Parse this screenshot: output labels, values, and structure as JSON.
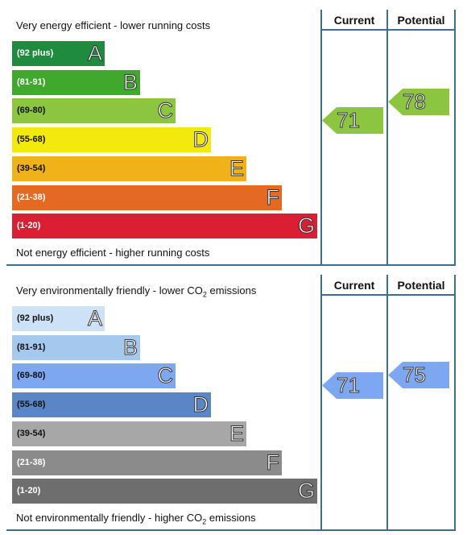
{
  "chart_data": [
    {
      "type": "bar",
      "header_current": "Current",
      "header_potential": "Potential",
      "top_caption": "Very energy efficient - lower running costs",
      "bottom_caption": "Not energy efficient - higher running costs",
      "bands": [
        {
          "range": "(92 plus)",
          "letter": "A",
          "color": "#1e8b3e",
          "text_color": "#ffffff"
        },
        {
          "range": "(81-91)",
          "letter": "B",
          "color": "#3fa82d",
          "text_color": "#ffffff"
        },
        {
          "range": "(69-80)",
          "letter": "C",
          "color": "#8cc53f",
          "text_color": "#111111"
        },
        {
          "range": "(55-68)",
          "letter": "D",
          "color": "#f4e90c",
          "text_color": "#111111"
        },
        {
          "range": "(39-54)",
          "letter": "E",
          "color": "#f0b218",
          "text_color": "#111111"
        },
        {
          "range": "(21-38)",
          "letter": "F",
          "color": "#e46a24",
          "text_color": "#ffffff"
        },
        {
          "range": "(1-20)",
          "letter": "G",
          "color": "#dc1e35",
          "text_color": "#ffffff"
        }
      ],
      "current": {
        "value": 71,
        "band": "C",
        "color": "#8cc53f"
      },
      "potential": {
        "value": 78,
        "band": "C",
        "color": "#8cc53f"
      }
    },
    {
      "type": "bar",
      "header_current": "Current",
      "header_potential": "Potential",
      "top_caption_pre": "Very environmentally friendly - lower CO",
      "top_caption_sub": "2",
      "top_caption_post": " emissions",
      "bottom_caption_pre": "Not environmentally friendly - higher CO",
      "bottom_caption_sub": "2",
      "bottom_caption_post": " emissions",
      "bands": [
        {
          "range": "(92 plus)",
          "letter": "A",
          "color": "#cde2f6",
          "text_color": "#111111"
        },
        {
          "range": "(81-91)",
          "letter": "B",
          "color": "#a5c8ef",
          "text_color": "#111111"
        },
        {
          "range": "(69-80)",
          "letter": "C",
          "color": "#7da7f0",
          "text_color": "#111111"
        },
        {
          "range": "(55-68)",
          "letter": "D",
          "color": "#5a86c8",
          "text_color": "#111111"
        },
        {
          "range": "(39-54)",
          "letter": "E",
          "color": "#a7a7a7",
          "text_color": "#111111"
        },
        {
          "range": "(21-38)",
          "letter": "F",
          "color": "#8b8b8b",
          "text_color": "#ffffff"
        },
        {
          "range": "(1-20)",
          "letter": "G",
          "color": "#6e6e6e",
          "text_color": "#ffffff"
        }
      ],
      "current": {
        "value": 71,
        "band": "C",
        "color": "#7da7f0"
      },
      "potential": {
        "value": 75,
        "band": "C",
        "color": "#7da7f0"
      }
    }
  ]
}
